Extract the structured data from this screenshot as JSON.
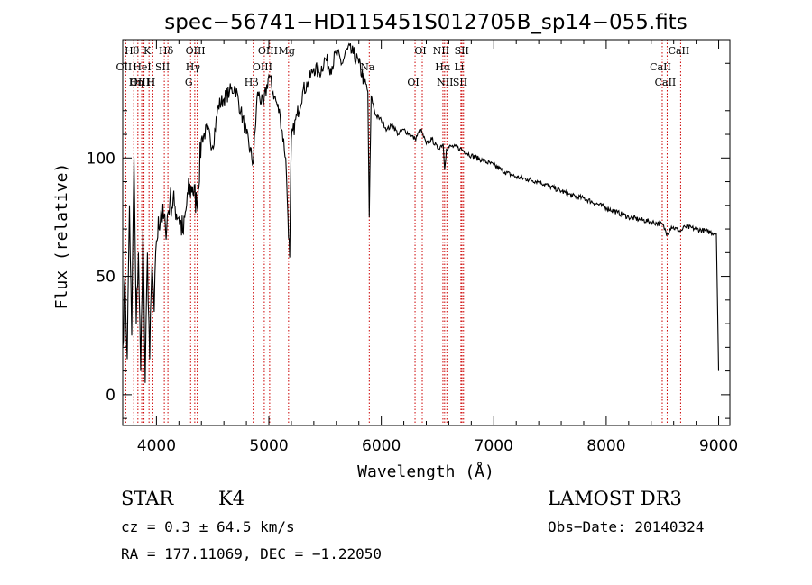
{
  "chart_data": {
    "type": "line",
    "title": "spec−56741−HD115451S012705B_sp14−055.fits",
    "xlabel": "Wavelength (Å)",
    "ylabel": "Flux (relative)",
    "xlim": [
      3700,
      9100
    ],
    "ylim": [
      -13,
      150
    ],
    "grid": false,
    "xticks": [
      4000,
      5000,
      6000,
      7000,
      8000,
      9000
    ],
    "yticks": [
      0,
      50,
      100
    ],
    "series": [
      {
        "x": [
          3700,
          3720,
          3740,
          3760,
          3780,
          3800,
          3820,
          3840,
          3860,
          3880,
          3900,
          3920,
          3940,
          3960,
          3980,
          4000,
          4040,
          4080,
          4120,
          4160,
          4200,
          4240,
          4280,
          4320,
          4360,
          4400,
          4450,
          4500,
          4550,
          4600,
          4650,
          4700,
          4750,
          4800,
          4860,
          4900,
          4950,
          5000,
          5050,
          5100,
          5150,
          5170,
          5185,
          5200,
          5250,
          5300,
          5350,
          5400,
          5450,
          5500,
          5550,
          5600,
          5650,
          5700,
          5750,
          5800,
          5850,
          5880,
          5893,
          5910,
          5950,
          6000,
          6050,
          6100,
          6150,
          6200,
          6250,
          6300,
          6350,
          6400,
          6450,
          6500,
          6550,
          6563,
          6580,
          6620,
          6700,
          6800,
          6900,
          7000,
          7100,
          7200,
          7300,
          7400,
          7500,
          7600,
          7700,
          7800,
          7900,
          8000,
          8100,
          8200,
          8300,
          8400,
          8498,
          8542,
          8580,
          8662,
          8700,
          8800,
          8900,
          8980,
          9000
        ],
        "values": [
          20,
          50,
          15,
          80,
          25,
          100,
          30,
          60,
          10,
          70,
          5,
          60,
          15,
          55,
          35,
          65,
          78,
          70,
          82,
          80,
          75,
          68,
          85,
          88,
          80,
          108,
          112,
          105,
          122,
          125,
          128,
          130,
          120,
          110,
          98,
          128,
          122,
          135,
          126,
          118,
          100,
          75,
          58,
          108,
          118,
          128,
          132,
          138,
          136,
          142,
          138,
          144,
          140,
          146,
          144,
          140,
          132,
          128,
          75,
          126,
          118,
          116,
          112,
          114,
          110,
          112,
          110,
          108,
          112,
          106,
          108,
          104,
          106,
          95,
          104,
          105,
          104,
          101,
          99,
          97,
          94,
          92,
          91,
          90,
          88,
          86,
          84,
          83,
          81,
          79,
          77,
          75,
          74,
          73,
          72,
          68,
          71,
          69,
          71,
          70,
          69,
          68,
          10
        ]
      }
    ],
    "line_marks": [
      {
        "label": "Hθ",
        "x": 3798
      },
      {
        "label": "OII",
        "x": 3727
      },
      {
        "label": "OIII",
        "x": 3869
      },
      {
        "label": "K",
        "x": 3934
      },
      {
        "label": "HeI",
        "x": 3889
      },
      {
        "label": "Hη",
        "x": 3835
      },
      {
        "label": "Hδ",
        "x": 4102
      },
      {
        "label": "SII",
        "x": 4070
      },
      {
        "label": "H",
        "x": 3968
      },
      {
        "label": "OIII",
        "x": 4363
      },
      {
        "label": "Hγ",
        "x": 4341
      },
      {
        "label": "G",
        "x": 4304
      },
      {
        "label": "OIII",
        "x": 5007
      },
      {
        "label": "OIII",
        "x": 4959
      },
      {
        "label": "Hβ",
        "x": 4861
      },
      {
        "label": "Mg",
        "x": 5175
      },
      {
        "label": "Na",
        "x": 5893
      },
      {
        "label": "OI",
        "x": 6300
      },
      {
        "label": "OI",
        "x": 6364
      },
      {
        "label": "Hα",
        "x": 6563
      },
      {
        "label": "SII",
        "x": 6717
      },
      {
        "label": "NII",
        "x": 6548
      },
      {
        "label": "Li",
        "x": 6708
      },
      {
        "label": "NII",
        "x": 6583
      },
      {
        "label": "SII",
        "x": 6731
      },
      {
        "label": "CaII",
        "x": 8498
      },
      {
        "label": "CaII",
        "x": 8542
      },
      {
        "label": "CaII",
        "x": 8662
      }
    ]
  },
  "info": {
    "object_class": "STAR",
    "subclass": "K4",
    "survey": "LAMOST DR3",
    "redshift": "cz = 0.3 ± 64.5 km/s",
    "obs_date": "Obs−Date: 20140324",
    "coords": "RA = 177.11069, DEC =  −1.22050"
  },
  "colors": {
    "spectrum": "#000000",
    "line_marker": "#cc0000",
    "axes": "#000000"
  }
}
